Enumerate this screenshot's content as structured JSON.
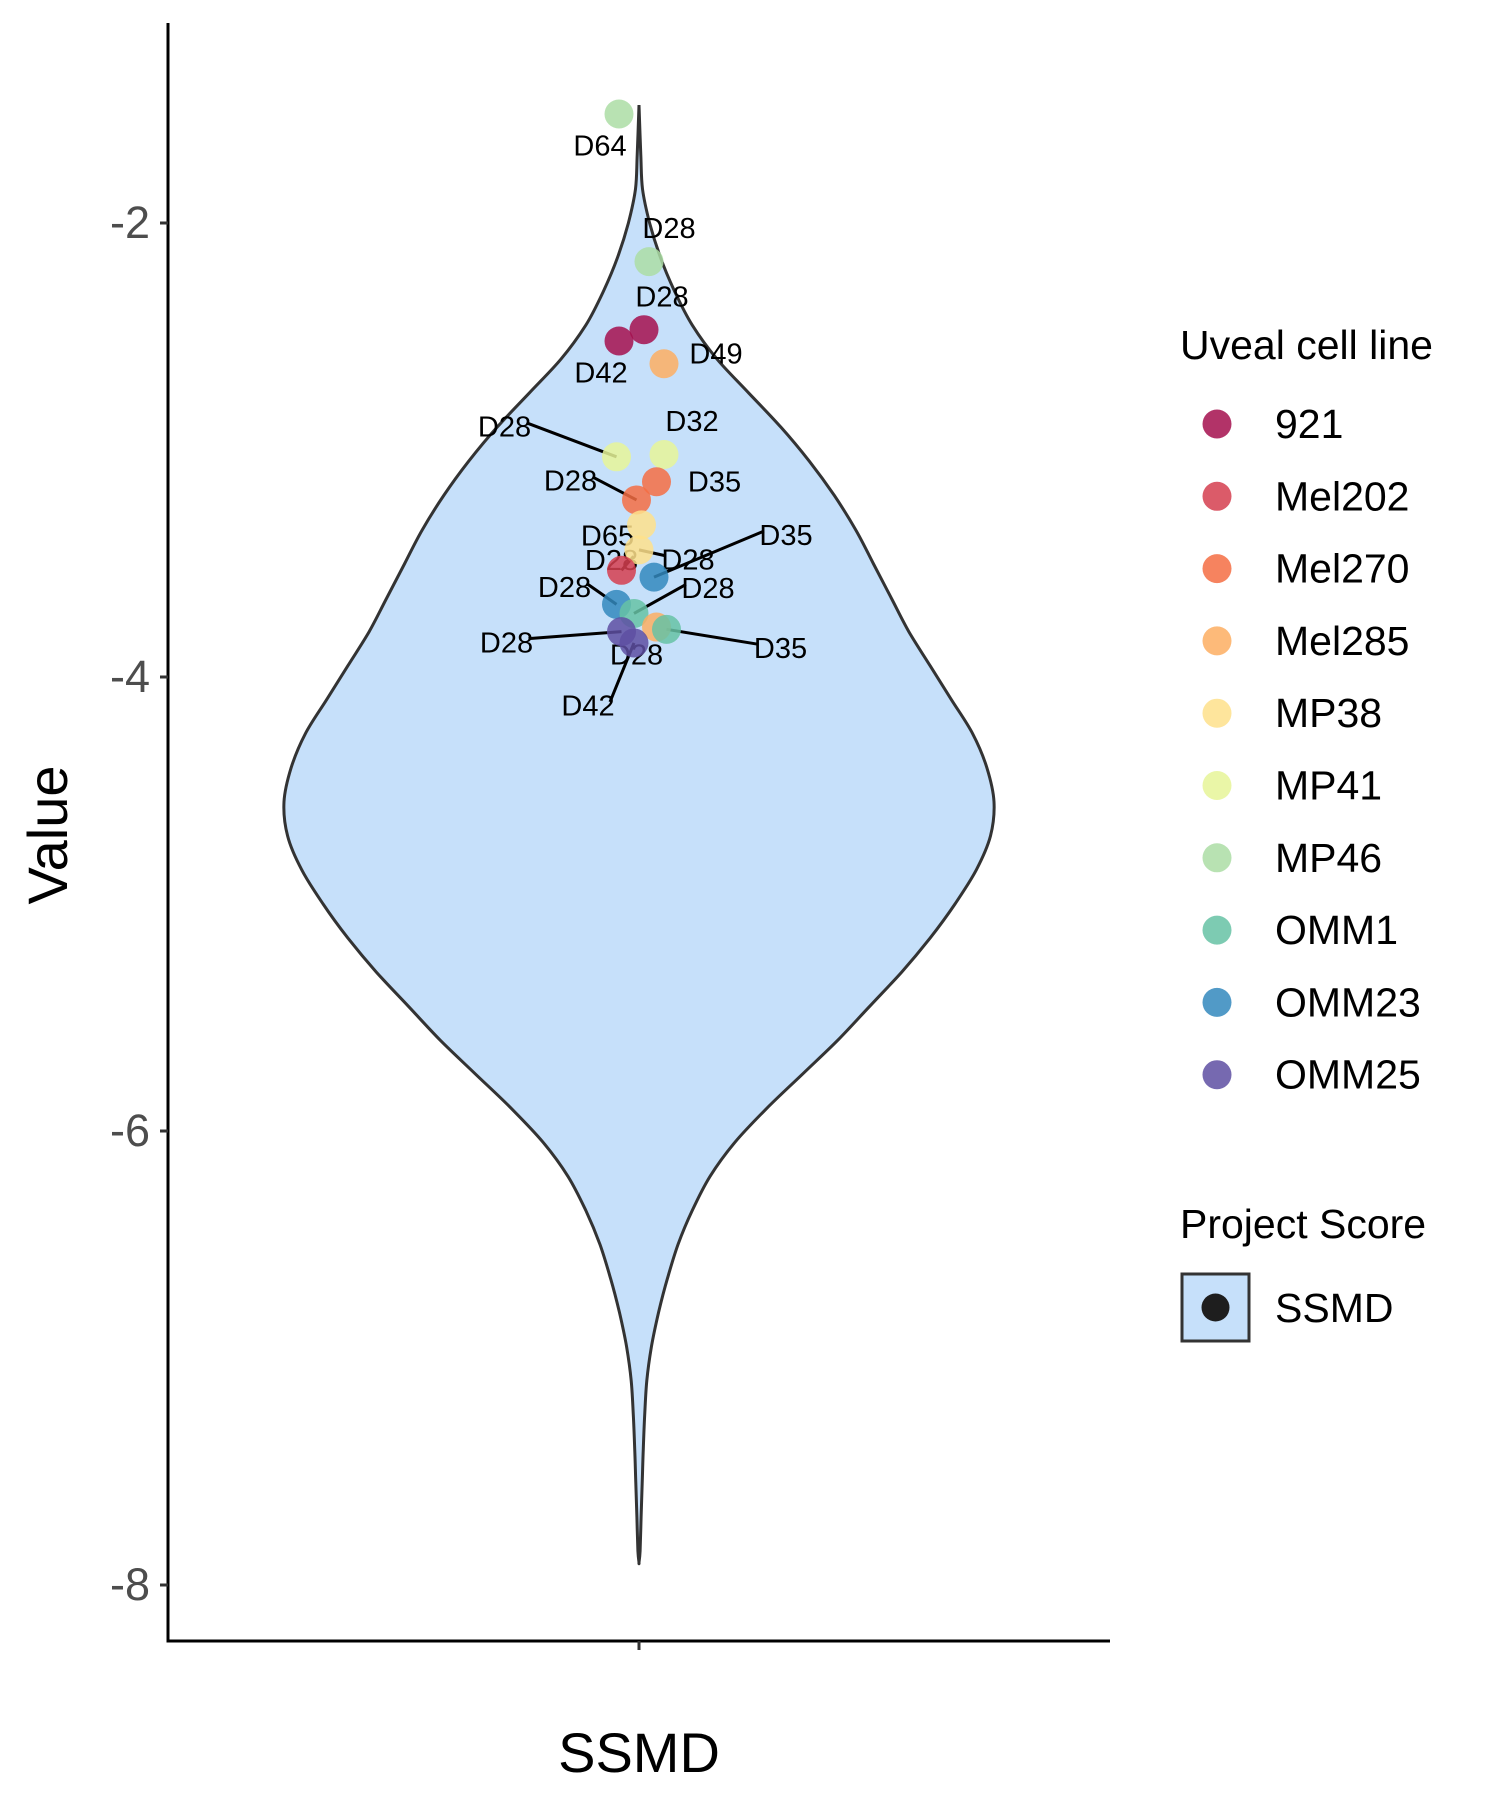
{
  "chart_data": {
    "type": "violin",
    "xlabel": "SSMD",
    "ylabel": "Value",
    "x_categories": [
      "SSMD"
    ],
    "y_ticks": [
      -2,
      -4,
      -6,
      -8
    ],
    "y_tick_labels": [
      "-2",
      "-4",
      "-6",
      "-8"
    ],
    "ylim": [
      -8.25,
      -1.15
    ],
    "grid": false,
    "violin": {
      "category": "SSMD",
      "min": -7.9,
      "max": -1.5,
      "fill": "#c6e0fa",
      "stroke": "#333333",
      "profile": [
        [
          -1.48,
          0.0
        ],
        [
          -1.7,
          0.005
        ],
        [
          -1.85,
          0.01
        ],
        [
          -2.0,
          0.03
        ],
        [
          -2.15,
          0.06
        ],
        [
          -2.3,
          0.1
        ],
        [
          -2.45,
          0.15
        ],
        [
          -2.6,
          0.22
        ],
        [
          -2.75,
          0.31
        ],
        [
          -2.9,
          0.4
        ],
        [
          -3.05,
          0.48
        ],
        [
          -3.2,
          0.55
        ],
        [
          -3.35,
          0.61
        ],
        [
          -3.5,
          0.66
        ],
        [
          -3.65,
          0.71
        ],
        [
          -3.8,
          0.76
        ],
        [
          -3.95,
          0.82
        ],
        [
          -4.1,
          0.88
        ],
        [
          -4.25,
          0.94
        ],
        [
          -4.4,
          0.98
        ],
        [
          -4.55,
          1.0
        ],
        [
          -4.7,
          0.99
        ],
        [
          -4.85,
          0.95
        ],
        [
          -5.0,
          0.89
        ],
        [
          -5.15,
          0.82
        ],
        [
          -5.3,
          0.74
        ],
        [
          -5.45,
          0.65
        ],
        [
          -5.6,
          0.56
        ],
        [
          -5.75,
          0.46
        ],
        [
          -5.9,
          0.36
        ],
        [
          -6.05,
          0.27
        ],
        [
          -6.2,
          0.2
        ],
        [
          -6.35,
          0.15
        ],
        [
          -6.5,
          0.11
        ],
        [
          -6.65,
          0.08
        ],
        [
          -6.8,
          0.055
        ],
        [
          -6.95,
          0.035
        ],
        [
          -7.1,
          0.022
        ],
        [
          -7.25,
          0.016
        ],
        [
          -7.4,
          0.012
        ],
        [
          -7.55,
          0.009
        ],
        [
          -7.7,
          0.006
        ],
        [
          -7.85,
          0.003
        ],
        [
          -7.9,
          0.0
        ]
      ]
    },
    "series": [
      {
        "name": "921",
        "color": "#a50f4e"
      },
      {
        "name": "Mel202",
        "color": "#d53e4f"
      },
      {
        "name": "Mel270",
        "color": "#f46d43"
      },
      {
        "name": "Mel285",
        "color": "#fdae61"
      },
      {
        "name": "MP38",
        "color": "#fee08b"
      },
      {
        "name": "MP41",
        "color": "#e6f598"
      },
      {
        "name": "MP46",
        "color": "#abdda4"
      },
      {
        "name": "OMM1",
        "color": "#66c2a5"
      },
      {
        "name": "OMM23",
        "color": "#3288bd"
      },
      {
        "name": "OMM25",
        "color": "#5e4fa2"
      }
    ],
    "points": [
      {
        "series": "MP46",
        "label": "D64",
        "x": -0.08,
        "y": -1.52
      },
      {
        "series": "MP46",
        "label": "D28",
        "x": 0.04,
        "y": -2.17
      },
      {
        "series": "921",
        "label": "D28",
        "x": 0.02,
        "y": -2.47
      },
      {
        "series": "921",
        "label": "D42",
        "x": -0.08,
        "y": -2.52
      },
      {
        "series": "Mel285",
        "label": "D49",
        "x": 0.1,
        "y": -2.62
      },
      {
        "series": "MP41",
        "label": "D28",
        "x": -0.09,
        "y": -3.03
      },
      {
        "series": "MP41",
        "label": "D32",
        "x": 0.1,
        "y": -3.02
      },
      {
        "series": "Mel270",
        "label": "D35",
        "x": 0.07,
        "y": -3.14
      },
      {
        "series": "Mel270",
        "label": "D28",
        "x": -0.01,
        "y": -3.22
      },
      {
        "series": "MP38",
        "label": "D65",
        "x": 0.01,
        "y": -3.33
      },
      {
        "series": "MP38",
        "label": "D28",
        "x": 0.0,
        "y": -3.44
      },
      {
        "series": "Mel202",
        "label": "D28",
        "x": -0.07,
        "y": -3.53
      },
      {
        "series": "OMM23",
        "label": "D35",
        "x": 0.06,
        "y": -3.56
      },
      {
        "series": "OMM23",
        "label": "D28",
        "x": -0.09,
        "y": -3.68
      },
      {
        "series": "OMM1",
        "label": "D28",
        "x": -0.02,
        "y": -3.72
      },
      {
        "series": "Mel285",
        "label": "D28",
        "x": 0.07,
        "y": -3.78
      },
      {
        "series": "OMM1",
        "label": "D35",
        "x": 0.11,
        "y": -3.79
      },
      {
        "series": "OMM25",
        "label": "D28",
        "x": -0.07,
        "y": -3.8
      },
      {
        "series": "OMM25",
        "label": "D42",
        "x": -0.02,
        "y": -3.85
      }
    ],
    "legends": [
      {
        "title": "Uveal cell line",
        "kind": "points"
      },
      {
        "title": "Project Score",
        "kind": "violin",
        "entries": [
          "SSMD"
        ]
      }
    ],
    "legend_position": "right"
  }
}
